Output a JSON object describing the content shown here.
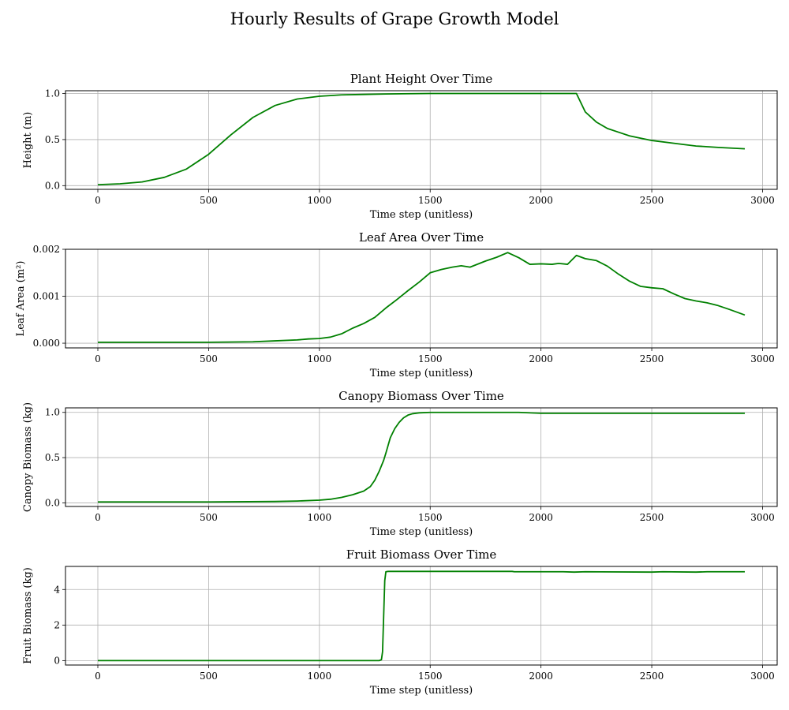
{
  "figure": {
    "title": "Hourly Results of Grape Growth Model",
    "line_color": "#008000",
    "grid_color": "#b0b0b0"
  },
  "chart_data": [
    {
      "type": "line",
      "title": "Plant Height Over Time",
      "xlabel": "Time step (unitless)",
      "ylabel": "Height (m)",
      "xlim": [
        -146,
        3066
      ],
      "ylim": [
        -0.04,
        1.03
      ],
      "xticks": [
        0,
        500,
        1000,
        1500,
        2000,
        2500,
        3000
      ],
      "xtick_labels": [
        "0",
        "500",
        "1000",
        "1500",
        "2000",
        "2500",
        "3000"
      ],
      "yticks": [
        0.0,
        0.5,
        1.0
      ],
      "ytick_labels": [
        "0.0",
        "0.5",
        "1.0"
      ],
      "grid": true,
      "series": [
        {
          "x": [
            0,
            100,
            200,
            300,
            400,
            500,
            600,
            700,
            800,
            900,
            1000,
            1100,
            1200,
            1300,
            1500,
            1700,
            1900,
            2100,
            2160,
            2200,
            2250,
            2300,
            2350,
            2400,
            2500,
            2600,
            2700,
            2800,
            2920
          ],
          "y": [
            0.01,
            0.02,
            0.04,
            0.09,
            0.18,
            0.34,
            0.55,
            0.74,
            0.87,
            0.94,
            0.97,
            0.985,
            0.99,
            0.995,
            1.0,
            1.0,
            1.0,
            1.0,
            1.0,
            0.8,
            0.69,
            0.62,
            0.58,
            0.54,
            0.49,
            0.46,
            0.43,
            0.415,
            0.4
          ]
        }
      ]
    },
    {
      "type": "line",
      "title": "Leaf Area Over Time",
      "xlabel": "Time step (unitless)",
      "ylabel": "Leaf Area (m²)",
      "xlim": [
        -146,
        3066
      ],
      "ylim": [
        -0.0001,
        0.002
      ],
      "xticks": [
        0,
        500,
        1000,
        1500,
        2000,
        2500,
        3000
      ],
      "xtick_labels": [
        "0",
        "500",
        "1000",
        "1500",
        "2000",
        "2500",
        "3000"
      ],
      "yticks": [
        0.0,
        0.001,
        0.002
      ],
      "ytick_labels": [
        "0.000",
        "0.001",
        "0.002"
      ],
      "grid": true,
      "series": [
        {
          "x": [
            0,
            500,
            700,
            800,
            900,
            950,
            1000,
            1050,
            1100,
            1150,
            1200,
            1250,
            1300,
            1350,
            1400,
            1450,
            1500,
            1550,
            1600,
            1640,
            1680,
            1750,
            1800,
            1850,
            1900,
            1950,
            2000,
            2050,
            2080,
            2120,
            2160,
            2200,
            2250,
            2300,
            2350,
            2400,
            2450,
            2500,
            2550,
            2600,
            2650,
            2700,
            2750,
            2800,
            2850,
            2920
          ],
          "y": [
            2e-05,
            2e-05,
            3e-05,
            5e-05,
            7e-05,
            9e-05,
            0.0001,
            0.00013,
            0.0002,
            0.00032,
            0.00042,
            0.00055,
            0.00075,
            0.00093,
            0.00112,
            0.0013,
            0.0015,
            0.00157,
            0.00162,
            0.00165,
            0.00162,
            0.00175,
            0.00183,
            0.00193,
            0.00182,
            0.00168,
            0.00169,
            0.00168,
            0.0017,
            0.00168,
            0.00187,
            0.0018,
            0.00176,
            0.00164,
            0.00147,
            0.00132,
            0.00121,
            0.00118,
            0.00116,
            0.00105,
            0.00095,
            0.0009,
            0.00086,
            0.0008,
            0.00072,
            0.0006
          ]
        }
      ]
    },
    {
      "type": "line",
      "title": "Canopy Biomass Over Time",
      "xlabel": "Time step (unitless)",
      "ylabel": "Canopy Biomass (kg)",
      "xlim": [
        -146,
        3066
      ],
      "ylim": [
        -0.04,
        1.05
      ],
      "xticks": [
        0,
        500,
        1000,
        1500,
        2000,
        2500,
        3000
      ],
      "xtick_labels": [
        "0",
        "500",
        "1000",
        "1500",
        "2000",
        "2500",
        "3000"
      ],
      "yticks": [
        0.0,
        0.5,
        1.0
      ],
      "ytick_labels": [
        "0.0",
        "0.5",
        "1.0"
      ],
      "grid": true,
      "series": [
        {
          "x": [
            0,
            500,
            800,
            900,
            1000,
            1050,
            1100,
            1150,
            1200,
            1230,
            1250,
            1270,
            1290,
            1300,
            1320,
            1340,
            1360,
            1380,
            1400,
            1420,
            1450,
            1500,
            1900,
            2000,
            2500,
            2920
          ],
          "y": [
            0.01,
            0.01,
            0.015,
            0.02,
            0.03,
            0.04,
            0.06,
            0.09,
            0.13,
            0.18,
            0.25,
            0.35,
            0.47,
            0.55,
            0.72,
            0.82,
            0.89,
            0.94,
            0.97,
            0.985,
            0.995,
            1.0,
            1.0,
            0.99,
            0.99,
            0.99
          ]
        }
      ]
    },
    {
      "type": "line",
      "title": "Fruit Biomass Over Time",
      "xlabel": "Time step (unitless)",
      "ylabel": "Fruit Biomass (kg)",
      "xlim": [
        -146,
        3066
      ],
      "ylim": [
        -0.25,
        5.3
      ],
      "xticks": [
        0,
        500,
        1000,
        1500,
        2000,
        2500,
        3000
      ],
      "xtick_labels": [
        "0",
        "500",
        "1000",
        "1500",
        "2000",
        "2500",
        "3000"
      ],
      "yticks": [
        0,
        2,
        4
      ],
      "ytick_labels": [
        "0",
        "2",
        "4"
      ],
      "grid": true,
      "series": [
        {
          "x": [
            0,
            1270,
            1280,
            1285,
            1290,
            1295,
            1300,
            1310,
            1500,
            1870,
            1880,
            2100,
            2150,
            2200,
            2500,
            2550,
            2700,
            2750,
            2920
          ],
          "y": [
            0.0,
            0.0,
            0.05,
            0.5,
            2.5,
            4.5,
            5.0,
            5.02,
            5.02,
            5.02,
            5.0,
            5.0,
            4.98,
            5.0,
            4.98,
            5.0,
            4.98,
            5.0,
            5.0
          ]
        }
      ]
    }
  ]
}
